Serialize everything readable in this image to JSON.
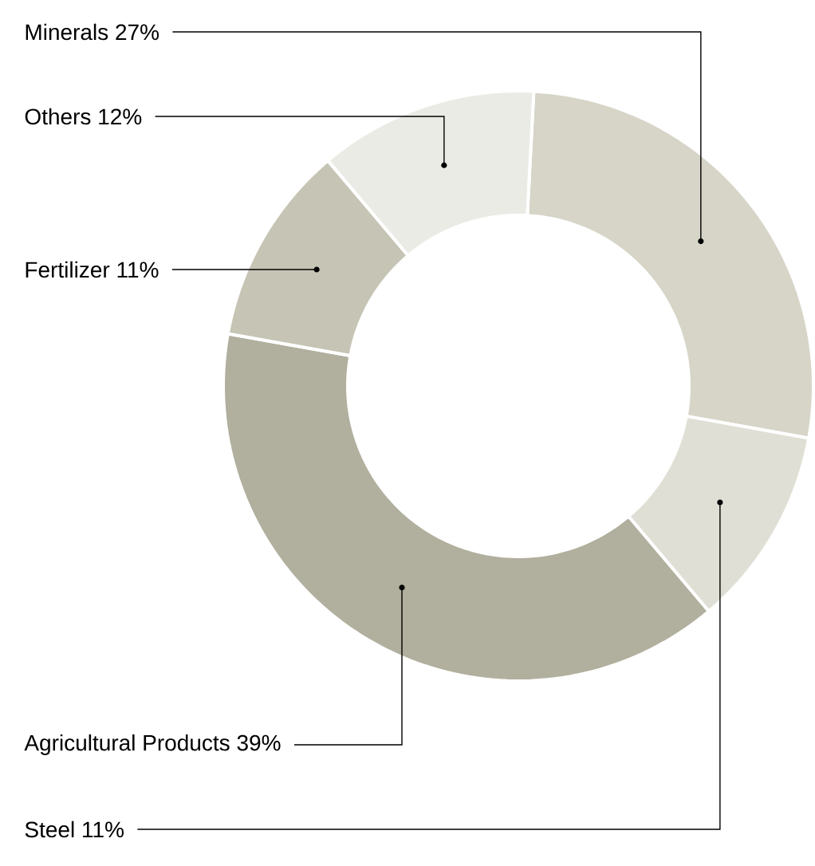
{
  "chart_data": {
    "type": "donut",
    "categories": [
      "Minerals",
      "Steel",
      "Agricultural Products",
      "Fertilizer",
      "Others"
    ],
    "values": [
      27,
      11,
      39,
      11,
      12
    ],
    "value_labels": [
      "27%",
      "11%",
      "39%",
      "11%",
      "12%"
    ],
    "colors": [
      "#d6d5c8",
      "#e0dfd5",
      "#b1af9d",
      "#c6c4b4",
      "#ebebe5"
    ],
    "data_labels": true
  }
}
